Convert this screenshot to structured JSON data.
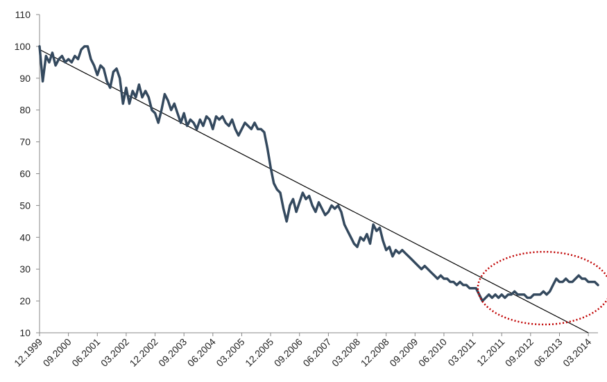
{
  "chart_data": {
    "type": "line",
    "title": "",
    "xlabel": "",
    "ylabel": "",
    "ylim": [
      10,
      110
    ],
    "y_ticks": [
      10,
      20,
      30,
      40,
      50,
      60,
      70,
      80,
      90,
      100,
      110
    ],
    "x_tick_labels": [
      "12.1999",
      "09.2000",
      "06.2001",
      "03.2002",
      "12.2002",
      "09.2003",
      "06.2004",
      "03.2005",
      "12.2005",
      "09.2006",
      "06.2007",
      "03.2008",
      "12.2008",
      "09.2009",
      "06.2010",
      "03.2011",
      "12.2011",
      "09.2012",
      "06.2013",
      "03.2014"
    ],
    "grid": false,
    "legend": "none",
    "series": [
      {
        "color": "#34495e",
        "points": [
          [
            "1999-12",
            100
          ],
          [
            "2000-01",
            89
          ],
          [
            "2000-02",
            97
          ],
          [
            "2000-03",
            95
          ],
          [
            "2000-04",
            98
          ],
          [
            "2000-05",
            94
          ],
          [
            "2000-06",
            96
          ],
          [
            "2000-07",
            97
          ],
          [
            "2000-08",
            95
          ],
          [
            "2000-09",
            96
          ],
          [
            "2000-10",
            95
          ],
          [
            "2000-11",
            97
          ],
          [
            "2000-12",
            96
          ],
          [
            "2001-01",
            99
          ],
          [
            "2001-02",
            100
          ],
          [
            "2001-03",
            100
          ],
          [
            "2001-04",
            96
          ],
          [
            "2001-05",
            94
          ],
          [
            "2001-06",
            91
          ],
          [
            "2001-07",
            94
          ],
          [
            "2001-08",
            93
          ],
          [
            "2001-09",
            89
          ],
          [
            "2001-10",
            87
          ],
          [
            "2001-11",
            92
          ],
          [
            "2001-12",
            93
          ],
          [
            "2002-01",
            90
          ],
          [
            "2002-02",
            82
          ],
          [
            "2002-03",
            87
          ],
          [
            "2002-04",
            82
          ],
          [
            "2002-05",
            86
          ],
          [
            "2002-06",
            84
          ],
          [
            "2002-07",
            88
          ],
          [
            "2002-08",
            84
          ],
          [
            "2002-09",
            86
          ],
          [
            "2002-10",
            84
          ],
          [
            "2002-11",
            80
          ],
          [
            "2002-12",
            79
          ],
          [
            "2003-01",
            76
          ],
          [
            "2003-02",
            80
          ],
          [
            "2003-03",
            85
          ],
          [
            "2003-04",
            83
          ],
          [
            "2003-05",
            80
          ],
          [
            "2003-06",
            82
          ],
          [
            "2003-07",
            79
          ],
          [
            "2003-08",
            76
          ],
          [
            "2003-09",
            79
          ],
          [
            "2003-10",
            75
          ],
          [
            "2003-11",
            77
          ],
          [
            "2003-12",
            76
          ],
          [
            "2004-01",
            74
          ],
          [
            "2004-02",
            77
          ],
          [
            "2004-03",
            75
          ],
          [
            "2004-04",
            78
          ],
          [
            "2004-05",
            77
          ],
          [
            "2004-06",
            74
          ],
          [
            "2004-07",
            78
          ],
          [
            "2004-08",
            77
          ],
          [
            "2004-09",
            78
          ],
          [
            "2004-10",
            76
          ],
          [
            "2004-11",
            75
          ],
          [
            "2004-12",
            77
          ],
          [
            "2005-01",
            74
          ],
          [
            "2005-02",
            72
          ],
          [
            "2005-03",
            74
          ],
          [
            "2005-04",
            76
          ],
          [
            "2005-05",
            75
          ],
          [
            "2005-06",
            74
          ],
          [
            "2005-07",
            76
          ],
          [
            "2005-08",
            74
          ],
          [
            "2005-09",
            74
          ],
          [
            "2005-10",
            73
          ],
          [
            "2005-11",
            68
          ],
          [
            "2005-12",
            62
          ],
          [
            "2006-01",
            57
          ],
          [
            "2006-02",
            55
          ],
          [
            "2006-03",
            54
          ],
          [
            "2006-04",
            49
          ],
          [
            "2006-05",
            45
          ],
          [
            "2006-06",
            50
          ],
          [
            "2006-07",
            52
          ],
          [
            "2006-08",
            48
          ],
          [
            "2006-09",
            51
          ],
          [
            "2006-10",
            54
          ],
          [
            "2006-11",
            52
          ],
          [
            "2006-12",
            53
          ],
          [
            "2007-01",
            50
          ],
          [
            "2007-02",
            48
          ],
          [
            "2007-03",
            51
          ],
          [
            "2007-04",
            49
          ],
          [
            "2007-05",
            47
          ],
          [
            "2007-06",
            48
          ],
          [
            "2007-07",
            50
          ],
          [
            "2007-08",
            49
          ],
          [
            "2007-09",
            50
          ],
          [
            "2007-10",
            48
          ],
          [
            "2007-11",
            44
          ],
          [
            "2007-12",
            42
          ],
          [
            "2008-01",
            40
          ],
          [
            "2008-02",
            38
          ],
          [
            "2008-03",
            37
          ],
          [
            "2008-04",
            40
          ],
          [
            "2008-05",
            39
          ],
          [
            "2008-06",
            41
          ],
          [
            "2008-07",
            38
          ],
          [
            "2008-08",
            44
          ],
          [
            "2008-09",
            42
          ],
          [
            "2008-10",
            43
          ],
          [
            "2008-11",
            39
          ],
          [
            "2008-12",
            36
          ],
          [
            "2009-01",
            37
          ],
          [
            "2009-02",
            34
          ],
          [
            "2009-03",
            36
          ],
          [
            "2009-04",
            35
          ],
          [
            "2009-05",
            36
          ],
          [
            "2009-06",
            35
          ],
          [
            "2009-07",
            34
          ],
          [
            "2009-08",
            33
          ],
          [
            "2009-09",
            32
          ],
          [
            "2009-10",
            31
          ],
          [
            "2009-11",
            30
          ],
          [
            "2009-12",
            31
          ],
          [
            "2010-01",
            30
          ],
          [
            "2010-02",
            29
          ],
          [
            "2010-03",
            28
          ],
          [
            "2010-04",
            27
          ],
          [
            "2010-05",
            28
          ],
          [
            "2010-06",
            27
          ],
          [
            "2010-07",
            27
          ],
          [
            "2010-08",
            26
          ],
          [
            "2010-09",
            26
          ],
          [
            "2010-10",
            25
          ],
          [
            "2010-11",
            26
          ],
          [
            "2010-12",
            25
          ],
          [
            "2011-01",
            25
          ],
          [
            "2011-02",
            24
          ],
          [
            "2011-03",
            24
          ],
          [
            "2011-04",
            24
          ],
          [
            "2011-05",
            22
          ],
          [
            "2011-06",
            20
          ],
          [
            "2011-07",
            21
          ],
          [
            "2011-08",
            22
          ],
          [
            "2011-09",
            21
          ],
          [
            "2011-10",
            22
          ],
          [
            "2011-11",
            21
          ],
          [
            "2011-12",
            22
          ],
          [
            "2012-01",
            21
          ],
          [
            "2012-02",
            22
          ],
          [
            "2012-03",
            22
          ],
          [
            "2012-04",
            23
          ],
          [
            "2012-05",
            22
          ],
          [
            "2012-06",
            22
          ],
          [
            "2012-07",
            22
          ],
          [
            "2012-08",
            21
          ],
          [
            "2012-09",
            21
          ],
          [
            "2012-10",
            22
          ],
          [
            "2012-11",
            22
          ],
          [
            "2012-12",
            22
          ],
          [
            "2013-01",
            23
          ],
          [
            "2013-02",
            22
          ],
          [
            "2013-03",
            23
          ],
          [
            "2013-04",
            25
          ],
          [
            "2013-05",
            27
          ],
          [
            "2013-06",
            26
          ],
          [
            "2013-07",
            26
          ],
          [
            "2013-08",
            27
          ],
          [
            "2013-09",
            26
          ],
          [
            "2013-10",
            26
          ],
          [
            "2013-11",
            27
          ],
          [
            "2013-12",
            28
          ],
          [
            "2014-01",
            27
          ],
          [
            "2014-02",
            27
          ],
          [
            "2014-03",
            26
          ],
          [
            "2014-04",
            26
          ],
          [
            "2014-05",
            26
          ],
          [
            "2014-06",
            25
          ]
        ]
      }
    ],
    "trendline": {
      "color": "#000000",
      "from": [
        "1999-12",
        99
      ],
      "to": [
        "2014-03",
        10
      ]
    },
    "highlight_ellipse": {
      "color": "#c00000",
      "style": "dotted",
      "x_range": [
        "2011-05",
        "2014-06"
      ],
      "y_range": [
        15,
        30
      ]
    }
  }
}
